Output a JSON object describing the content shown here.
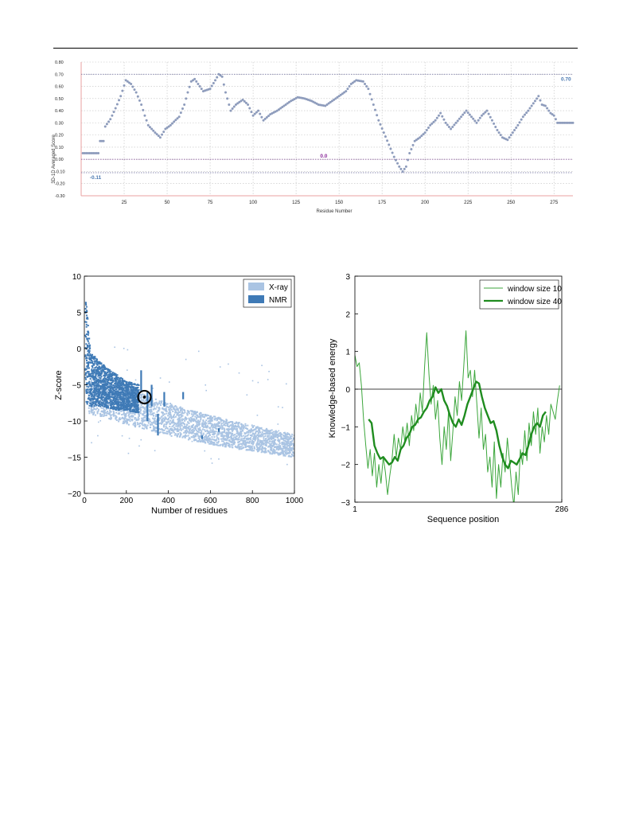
{
  "colors": {
    "verify_points": "#8e9cbc",
    "verify_grid": "#c0c0c0",
    "verify_axis": "#e8a0a0",
    "ref_line_upper": "#6a6a9a",
    "ref_line_zero": "#8a5a9a",
    "label_blue": "#4a78b0",
    "label_purple": "#8a2a9a",
    "xray": "#aac4e3",
    "nmr": "#3f7ab6",
    "marker": "#000000",
    "window10": "#3ca63c",
    "window40": "#1f8c1f",
    "zero_line": "#000000"
  },
  "chart_data": [
    {
      "id": "verify3d",
      "type": "scatter",
      "xlabel": "Residue Number",
      "ylabel": "3D-1D Averaged Score",
      "xlim": [
        0,
        286
      ],
      "ylim": [
        -0.3,
        0.8
      ],
      "x_ticks": [
        25,
        50,
        75,
        100,
        125,
        150,
        175,
        200,
        225,
        250,
        275
      ],
      "y_ticks": [
        -0.3,
        -0.2,
        -0.1,
        0.0,
        0.1,
        0.2,
        0.3,
        0.4,
        0.5,
        0.6,
        0.7,
        0.8
      ],
      "y_tick_labels": [
        "-0.30",
        "-0.20",
        "-0.10",
        "0.00",
        "0.10",
        "0.20",
        "0.30",
        "0.40",
        "0.50",
        "0.60",
        "0.70",
        "0.80"
      ],
      "grid": true,
      "reference_lines": [
        {
          "y": 0.7,
          "label": "0.70",
          "label_at_x": 282
        },
        {
          "y": 0.0,
          "label": "0.0",
          "label_at_x": 139
        },
        {
          "y": -0.11,
          "label": "-0.11",
          "label_at_x": 5
        }
      ],
      "profile_knots": [
        [
          1,
          0.05
        ],
        [
          10,
          0.05
        ],
        [
          11,
          0.15
        ],
        [
          13,
          0.15
        ],
        [
          14,
          0.27
        ],
        [
          17,
          0.33
        ],
        [
          20,
          0.42
        ],
        [
          23,
          0.52
        ],
        [
          26,
          0.65
        ],
        [
          29,
          0.62
        ],
        [
          32,
          0.55
        ],
        [
          35,
          0.45
        ],
        [
          37,
          0.36
        ],
        [
          39,
          0.28
        ],
        [
          41,
          0.25
        ],
        [
          43,
          0.22
        ],
        [
          46,
          0.18
        ],
        [
          49,
          0.25
        ],
        [
          52,
          0.28
        ],
        [
          54,
          0.31
        ],
        [
          57,
          0.35
        ],
        [
          60,
          0.45
        ],
        [
          62,
          0.55
        ],
        [
          64,
          0.64
        ],
        [
          66,
          0.66
        ],
        [
          68,
          0.62
        ],
        [
          71,
          0.56
        ],
        [
          75,
          0.58
        ],
        [
          78,
          0.65
        ],
        [
          80,
          0.7
        ],
        [
          82,
          0.68
        ],
        [
          84,
          0.55
        ],
        [
          87,
          0.4
        ],
        [
          90,
          0.45
        ],
        [
          94,
          0.49
        ],
        [
          97,
          0.45
        ],
        [
          100,
          0.36
        ],
        [
          103,
          0.4
        ],
        [
          106,
          0.32
        ],
        [
          110,
          0.37
        ],
        [
          114,
          0.4
        ],
        [
          118,
          0.44
        ],
        [
          122,
          0.48
        ],
        [
          126,
          0.51
        ],
        [
          130,
          0.5
        ],
        [
          134,
          0.48
        ],
        [
          138,
          0.45
        ],
        [
          142,
          0.44
        ],
        [
          146,
          0.48
        ],
        [
          150,
          0.52
        ],
        [
          154,
          0.56
        ],
        [
          157,
          0.62
        ],
        [
          160,
          0.65
        ],
        [
          164,
          0.64
        ],
        [
          167,
          0.58
        ],
        [
          170,
          0.45
        ],
        [
          173,
          0.32
        ],
        [
          176,
          0.22
        ],
        [
          179,
          0.12
        ],
        [
          182,
          0.02
        ],
        [
          185,
          -0.06
        ],
        [
          187,
          -0.1
        ],
        [
          189,
          -0.06
        ],
        [
          191,
          0.05
        ],
        [
          194,
          0.15
        ],
        [
          197,
          0.18
        ],
        [
          200,
          0.22
        ],
        [
          203,
          0.28
        ],
        [
          206,
          0.32
        ],
        [
          209,
          0.38
        ],
        [
          212,
          0.3
        ],
        [
          215,
          0.25
        ],
        [
          218,
          0.3
        ],
        [
          221,
          0.35
        ],
        [
          224,
          0.4
        ],
        [
          227,
          0.35
        ],
        [
          230,
          0.3
        ],
        [
          233,
          0.36
        ],
        [
          236,
          0.4
        ],
        [
          239,
          0.32
        ],
        [
          242,
          0.24
        ],
        [
          245,
          0.18
        ],
        [
          248,
          0.16
        ],
        [
          251,
          0.22
        ],
        [
          254,
          0.28
        ],
        [
          257,
          0.35
        ],
        [
          260,
          0.4
        ],
        [
          263,
          0.46
        ],
        [
          266,
          0.52
        ],
        [
          268,
          0.45
        ],
        [
          270,
          0.44
        ],
        [
          273,
          0.38
        ],
        [
          275,
          0.36
        ],
        [
          277,
          0.3
        ],
        [
          286,
          0.3
        ]
      ]
    },
    {
      "id": "zscore",
      "type": "scatter",
      "xlabel": "Number of residues",
      "ylabel": "Z-score",
      "xlim": [
        0,
        1000
      ],
      "ylim": [
        -20,
        10
      ],
      "x_ticks": [
        0,
        200,
        400,
        600,
        800,
        1000
      ],
      "y_ticks": [
        -20,
        -15,
        -10,
        -5,
        0,
        5,
        10
      ],
      "legend": {
        "position": "top-right",
        "entries": [
          "X-ray",
          "NMR"
        ]
      },
      "xray_band": [
        [
          20,
          -3.0,
          -9.0
        ],
        [
          100,
          -4.5,
          -9.5
        ],
        [
          200,
          -5.5,
          -10.5
        ],
        [
          300,
          -6.5,
          -11.2
        ],
        [
          400,
          -7.5,
          -12.0
        ],
        [
          500,
          -8.5,
          -12.6
        ],
        [
          600,
          -9.2,
          -13.2
        ],
        [
          700,
          -10.0,
          -13.7
        ],
        [
          800,
          -10.6,
          -14.2
        ],
        [
          900,
          -11.3,
          -14.6
        ],
        [
          1000,
          -11.8,
          -15.0
        ]
      ],
      "nmr_band": [
        [
          5,
          8.0,
          -7.5
        ],
        [
          30,
          -0.5,
          -8.0
        ],
        [
          80,
          -2.0,
          -8.0
        ],
        [
          150,
          -3.5,
          -8.5
        ],
        [
          200,
          -4.5,
          -8.5
        ],
        [
          260,
          -5.0,
          -9.0
        ]
      ],
      "highlight": {
        "x": 286,
        "y": -6.7
      }
    },
    {
      "id": "energy",
      "type": "line",
      "xlabel": "Sequence position",
      "ylabel": "Knowledge-based energy",
      "xlim": [
        1,
        286
      ],
      "ylim": [
        -3,
        3
      ],
      "x_tick_labels": [
        "1",
        "286"
      ],
      "y_ticks": [
        -3,
        -2,
        -1,
        0,
        1,
        2,
        3
      ],
      "y_tick_labels": [
        "−3",
        "−2",
        "−1",
        "0",
        "1",
        "2",
        "3"
      ],
      "legend": {
        "position": "top-right"
      },
      "series": [
        {
          "name": "window size 10",
          "x": [
            1,
            4,
            7,
            10,
            13,
            16,
            19,
            22,
            25,
            28,
            31,
            34,
            37,
            40,
            43,
            46,
            49,
            52,
            55,
            58,
            61,
            64,
            67,
            70,
            73,
            76,
            79,
            82,
            85,
            88,
            91,
            94,
            97,
            100,
            103,
            106,
            109,
            112,
            115,
            118,
            121,
            124,
            127,
            130,
            133,
            136,
            139,
            142,
            145,
            148,
            151,
            154,
            157,
            160,
            163,
            166,
            169,
            172,
            175,
            178,
            181,
            184,
            187,
            190,
            193,
            196,
            199,
            202,
            205,
            208,
            211,
            214,
            217,
            220,
            223,
            226,
            229,
            232,
            235,
            238,
            241,
            244,
            247,
            250,
            253,
            256,
            259,
            262,
            265,
            268,
            271,
            274,
            277,
            280,
            283
          ],
          "values": [
            0.9,
            0.6,
            0.7,
            0.1,
            -0.8,
            -1.5,
            -2.1,
            -1.6,
            -2.3,
            -1.7,
            -2.6,
            -2.0,
            -2.5,
            -1.8,
            -2.2,
            -2.8,
            -2.3,
            -1.9,
            -1.2,
            -1.8,
            -1.3,
            -1.6,
            -1.0,
            -1.4,
            -0.9,
            -1.5,
            -0.7,
            -1.1,
            -0.4,
            -0.9,
            -0.1,
            -0.6,
            0.6,
            1.5,
            0.4,
            -0.4,
            0.1,
            -0.8,
            -0.3,
            -1.3,
            -2.0,
            -1.0,
            -1.6,
            -0.6,
            -1.9,
            -1.1,
            -0.2,
            -0.7,
            0.2,
            -0.3,
            0.6,
            1.55,
            0.3,
            0.5,
            -0.2,
            0.5,
            -0.4,
            -1.3,
            -0.5,
            -1.6,
            -1.2,
            -2.2,
            -1.8,
            -2.6,
            -1.4,
            -2.9,
            -2.0,
            -2.6,
            -1.7,
            -2.2,
            -1.3,
            -1.9,
            -2.6,
            -3.1,
            -2.2,
            -2.8,
            -1.6,
            -2.0,
            -1.1,
            -1.9,
            -0.9,
            -1.5,
            -0.6,
            -1.2,
            -0.5,
            -1.7,
            -1.0,
            -1.4,
            -0.7,
            -1.2,
            -0.4,
            -0.6,
            -0.8,
            -0.3,
            0.1
          ]
        },
        {
          "name": "window size 40",
          "x": [
            20,
            24,
            28,
            32,
            36,
            40,
            44,
            48,
            52,
            56,
            60,
            64,
            68,
            72,
            76,
            80,
            84,
            88,
            92,
            96,
            100,
            104,
            108,
            112,
            116,
            120,
            124,
            128,
            132,
            136,
            140,
            144,
            148,
            152,
            156,
            160,
            164,
            168,
            172,
            176,
            180,
            184,
            188,
            192,
            196,
            200,
            204,
            208,
            212,
            216,
            220,
            224,
            228,
            232,
            236,
            240,
            244,
            248,
            252,
            256,
            260,
            264
          ],
          "values": [
            -0.8,
            -0.9,
            -1.5,
            -1.7,
            -1.85,
            -1.8,
            -1.9,
            -2.0,
            -1.95,
            -1.8,
            -1.9,
            -1.6,
            -1.5,
            -1.3,
            -1.2,
            -1.0,
            -0.95,
            -0.8,
            -0.75,
            -0.6,
            -0.5,
            -0.3,
            -0.2,
            0.05,
            -0.1,
            0.0,
            -0.3,
            -0.45,
            -0.7,
            -0.9,
            -1.0,
            -0.8,
            -0.95,
            -0.7,
            -0.4,
            -0.2,
            0.0,
            0.2,
            0.15,
            -0.2,
            -0.5,
            -0.7,
            -0.9,
            -0.85,
            -1.1,
            -1.5,
            -1.8,
            -2.0,
            -2.1,
            -1.9,
            -1.95,
            -2.0,
            -1.85,
            -1.7,
            -1.75,
            -1.5,
            -1.2,
            -1.0,
            -0.9,
            -1.0,
            -0.7,
            -0.6
          ]
        }
      ]
    }
  ]
}
